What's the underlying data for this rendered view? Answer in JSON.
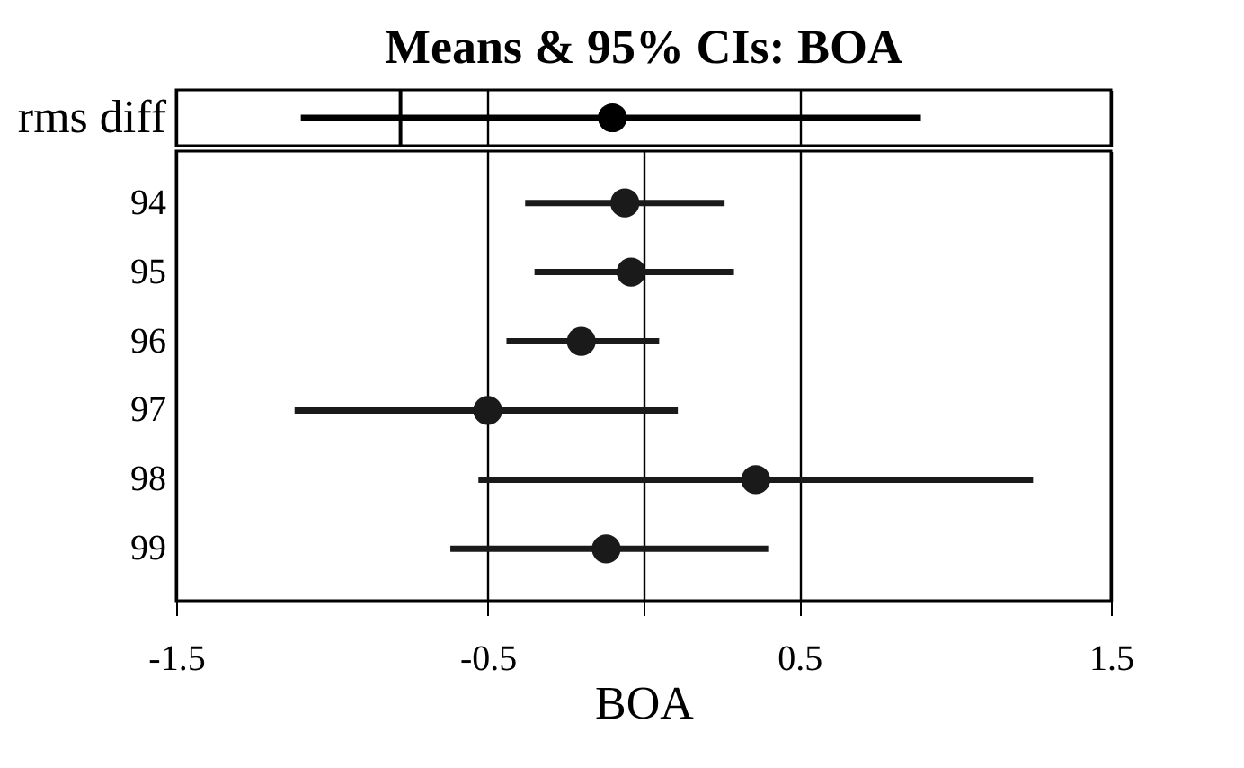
{
  "chart_data": [
    {
      "type": "scatter",
      "orientation": "horizontal",
      "title": "Means & 95% CIs: BOA",
      "categories": [
        "rms diff"
      ],
      "series": [
        {
          "color": "#000000",
          "values": [
            -0.1
          ],
          "errors": [
            [
              -1.1,
              0.89
            ]
          ]
        }
      ],
      "xlim": [
        -1.5,
        1.5
      ],
      "xticks": [
        -1.5,
        -0.5,
        0.5,
        1.5
      ],
      "grid": "x",
      "tick_labels": "y",
      "marker": "circle",
      "ref_lines": [
        {
          "axis": "x",
          "value": -0.78,
          "color": "#000000"
        }
      ]
    },
    {
      "type": "scatter",
      "orientation": "horizontal",
      "xlabel": "BOA",
      "categories": [
        "94",
        "95",
        "96",
        "97",
        "98",
        "99"
      ],
      "series": [
        {
          "color": "#1a1a1a",
          "values": [
            -0.06,
            -0.04,
            -0.2,
            -0.5,
            0.36,
            -0.12
          ],
          "errors": [
            [
              -0.38,
              0.26
            ],
            [
              -0.35,
              0.29
            ],
            [
              -0.44,
              0.05
            ],
            [
              -1.12,
              0.11
            ],
            [
              -0.53,
              1.25
            ],
            [
              -0.62,
              0.4
            ]
          ]
        }
      ],
      "xlim": [
        -1.5,
        1.5
      ],
      "xticks": [
        -1.5,
        -0.5,
        {
          "value": 0,
          "label": null
        },
        0.5,
        1.5
      ],
      "grid": "x",
      "marker": "circle"
    }
  ]
}
